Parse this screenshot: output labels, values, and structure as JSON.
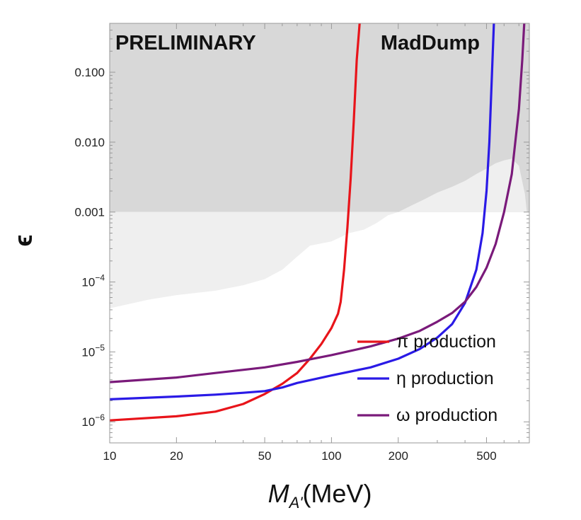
{
  "chart_data": {
    "type": "line",
    "x_scale": "log",
    "y_scale": "log",
    "xlim": [
      10,
      780
    ],
    "ylim": [
      5e-07,
      0.5
    ],
    "x_ticks": [
      {
        "value": 10,
        "label": "10"
      },
      {
        "value": 20,
        "label": "20"
      },
      {
        "value": 50,
        "label": "50"
      },
      {
        "value": 100,
        "label": "100"
      },
      {
        "value": 200,
        "label": "200"
      },
      {
        "value": 500,
        "label": "500"
      }
    ],
    "y_ticks": [
      {
        "value": 1e-06,
        "base": "10",
        "exp": "−6"
      },
      {
        "value": 1e-05,
        "base": "10",
        "exp": "−5"
      },
      {
        "value": 0.0001,
        "base": "10",
        "exp": "−4"
      },
      {
        "value": 0.001,
        "label": "0.001"
      },
      {
        "value": 0.01,
        "label": "0.010"
      },
      {
        "value": 0.1,
        "label": "0.100"
      }
    ],
    "xlabel": {
      "main": "M",
      "sub": "A'",
      "unit": "(MeV)"
    },
    "ylabel": "ϵ",
    "annotations": {
      "left": "PRELIMINARY",
      "right": "MadDump"
    },
    "excluded_regions": [
      {
        "name": "upper",
        "color": "#d8d8d8",
        "y_from": 0.001,
        "y_to": 0.5,
        "x_from": 10,
        "x_to": 780
      },
      {
        "name": "light",
        "color": "#efefef",
        "upper_y": 0.001,
        "lower_boundary": [
          [
            10,
            4.2e-05
          ],
          [
            15,
            5.6e-05
          ],
          [
            20,
            6.5e-05
          ],
          [
            30,
            7.5e-05
          ],
          [
            40,
            9e-05
          ],
          [
            50,
            0.00011
          ],
          [
            60,
            0.00015
          ],
          [
            70,
            0.00023
          ],
          [
            80,
            0.00033
          ],
          [
            100,
            0.00038
          ],
          [
            120,
            0.0005
          ],
          [
            140,
            0.00056
          ],
          [
            160,
            0.0007
          ],
          [
            180,
            0.0009
          ],
          [
            200,
            0.001
          ],
          [
            230,
            0.00125
          ],
          [
            260,
            0.0015
          ],
          [
            300,
            0.0019
          ],
          [
            350,
            0.0023
          ],
          [
            400,
            0.0028
          ],
          [
            450,
            0.0035
          ],
          [
            500,
            0.0042
          ],
          [
            550,
            0.005
          ],
          [
            600,
            0.0055
          ],
          [
            650,
            0.0058
          ],
          [
            700,
            0.0046
          ],
          [
            745,
            0.0018
          ],
          [
            760,
            0.001
          ]
        ]
      }
    ],
    "series": [
      {
        "name": "π production",
        "color": "#e8141a",
        "points": [
          [
            10,
            1.05e-06
          ],
          [
            20,
            1.2e-06
          ],
          [
            30,
            1.4e-06
          ],
          [
            40,
            1.8e-06
          ],
          [
            50,
            2.5e-06
          ],
          [
            60,
            3.5e-06
          ],
          [
            70,
            5e-06
          ],
          [
            80,
            8e-06
          ],
          [
            90,
            1.3e-05
          ],
          [
            100,
            2.2e-05
          ],
          [
            107,
            3.5e-05
          ],
          [
            110,
            5.2e-05
          ],
          [
            114,
            0.00015
          ],
          [
            118,
            0.0006
          ],
          [
            122,
            0.003
          ],
          [
            126,
            0.02
          ],
          [
            130,
            0.15
          ],
          [
            134,
            0.5
          ]
        ]
      },
      {
        "name": "η production",
        "color": "#2a1ae6",
        "points": [
          [
            10,
            2.1e-06
          ],
          [
            20,
            2.3e-06
          ],
          [
            30,
            2.45e-06
          ],
          [
            40,
            2.6e-06
          ],
          [
            50,
            2.75e-06
          ],
          [
            60,
            3.1e-06
          ],
          [
            70,
            3.6e-06
          ],
          [
            100,
            4.6e-06
          ],
          [
            150,
            6e-06
          ],
          [
            200,
            8e-06
          ],
          [
            250,
            1.1e-05
          ],
          [
            300,
            1.6e-05
          ],
          [
            350,
            2.5e-05
          ],
          [
            400,
            5e-05
          ],
          [
            450,
            0.00015
          ],
          [
            480,
            0.0005
          ],
          [
            500,
            0.002
          ],
          [
            515,
            0.01
          ],
          [
            528,
            0.08
          ],
          [
            540,
            0.5
          ]
        ]
      },
      {
        "name": "ω production",
        "color": "#7a1a7a",
        "points": [
          [
            10,
            3.7e-06
          ],
          [
            20,
            4.3e-06
          ],
          [
            30,
            5e-06
          ],
          [
            50,
            6e-06
          ],
          [
            70,
            7.2e-06
          ],
          [
            100,
            9e-06
          ],
          [
            150,
            1.2e-05
          ],
          [
            200,
            1.55e-05
          ],
          [
            250,
            2e-05
          ],
          [
            300,
            2.7e-05
          ],
          [
            350,
            3.6e-05
          ],
          [
            400,
            5.2e-05
          ],
          [
            450,
            8.5e-05
          ],
          [
            500,
            0.00016
          ],
          [
            550,
            0.00035
          ],
          [
            600,
            0.001
          ],
          [
            650,
            0.0035
          ],
          [
            700,
            0.03
          ],
          [
            725,
            0.15
          ],
          [
            740,
            0.5
          ]
        ]
      }
    ],
    "legend": {
      "position": "bottom-right"
    }
  }
}
